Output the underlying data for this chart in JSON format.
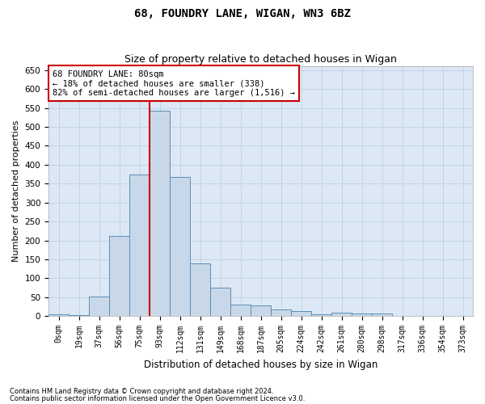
{
  "title_line1": "68, FOUNDRY LANE, WIGAN, WN3 6BZ",
  "title_line2": "Size of property relative to detached houses in Wigan",
  "xlabel": "Distribution of detached houses by size in Wigan",
  "ylabel": "Number of detached properties",
  "bar_labels": [
    "0sqm",
    "19sqm",
    "37sqm",
    "56sqm",
    "75sqm",
    "93sqm",
    "112sqm",
    "131sqm",
    "149sqm",
    "168sqm",
    "187sqm",
    "205sqm",
    "224sqm",
    "242sqm",
    "261sqm",
    "280sqm",
    "298sqm",
    "317sqm",
    "336sqm",
    "354sqm",
    "373sqm"
  ],
  "bar_values": [
    5,
    3,
    52,
    211,
    375,
    542,
    368,
    140,
    76,
    30,
    29,
    18,
    14,
    5,
    9,
    7,
    7,
    1,
    0,
    0,
    0
  ],
  "bar_color": "#c8d8e8",
  "bar_edge_color": "#5b8db8",
  "vline_x": 4.5,
  "vline_color": "#cc0000",
  "annotation_text": "68 FOUNDRY LANE: 80sqm\n← 18% of detached houses are smaller (338)\n82% of semi-detached houses are larger (1,516) →",
  "annotation_box_color": "#ffffff",
  "annotation_box_edge": "#cc0000",
  "ylim": [
    0,
    660
  ],
  "yticks": [
    0,
    50,
    100,
    150,
    200,
    250,
    300,
    350,
    400,
    450,
    500,
    550,
    600,
    650
  ],
  "background_color": "#dce8f5",
  "footer_line1": "Contains HM Land Registry data © Crown copyright and database right 2024.",
  "footer_line2": "Contains public sector information licensed under the Open Government Licence v3.0."
}
